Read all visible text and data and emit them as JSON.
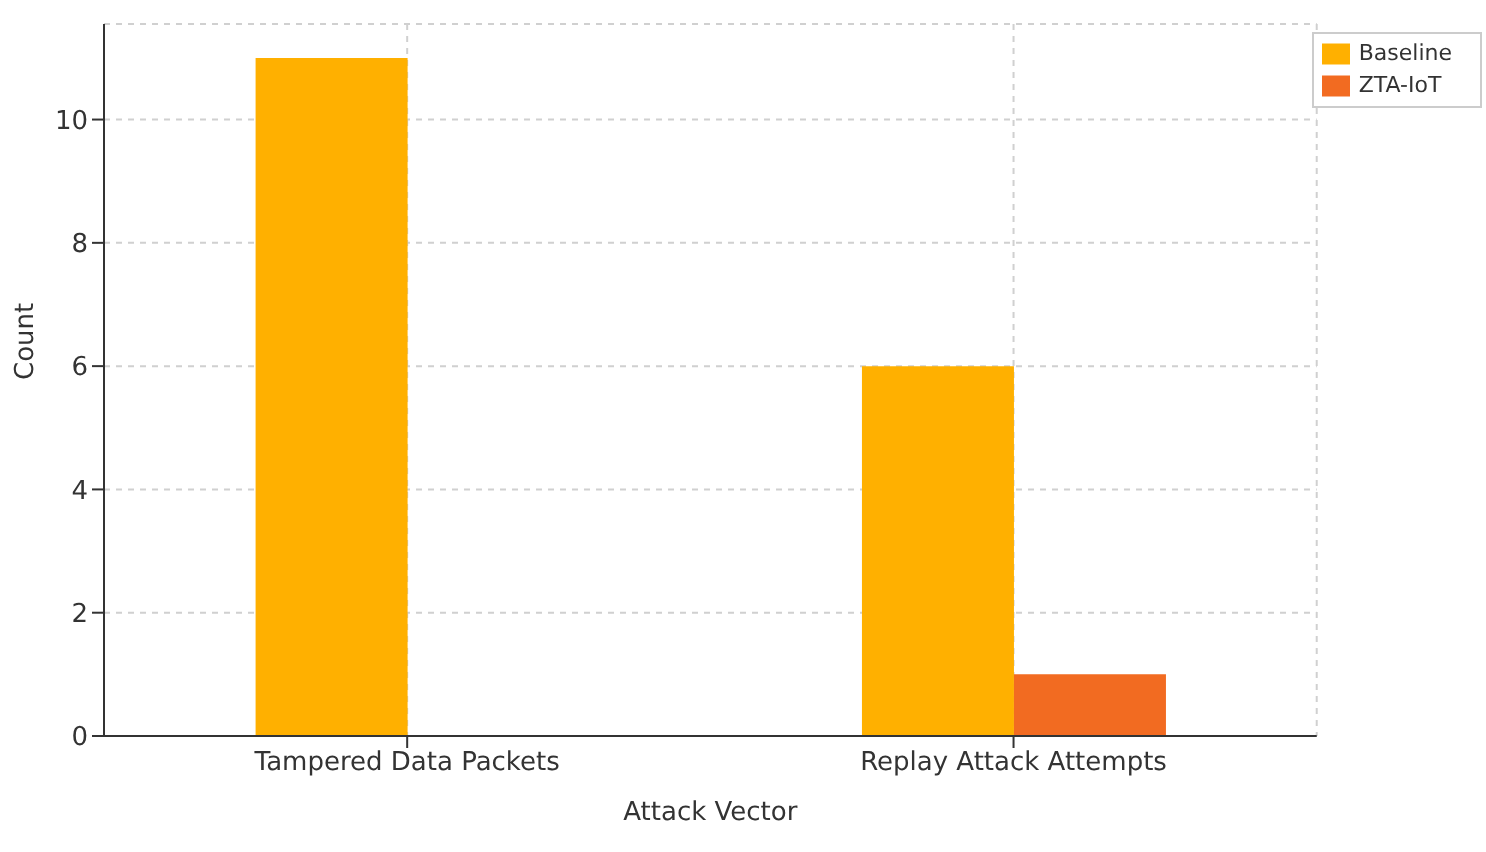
{
  "chart_data": {
    "type": "bar",
    "xlabel": "Attack Vector",
    "ylabel": "Count",
    "categories": [
      "Tampered Data Packets",
      "Replay Attack Attempts"
    ],
    "series": [
      {
        "name": "Baseline",
        "color": "#ffb000",
        "values": [
          11,
          6
        ]
      },
      {
        "name": "ZTA-IoT",
        "color": "#f26b21",
        "values": [
          0,
          1
        ]
      }
    ],
    "ylim": [
      0,
      11.55
    ],
    "yticks": [
      0,
      2,
      4,
      6,
      8,
      10
    ],
    "grid": true,
    "legend": "top right"
  }
}
